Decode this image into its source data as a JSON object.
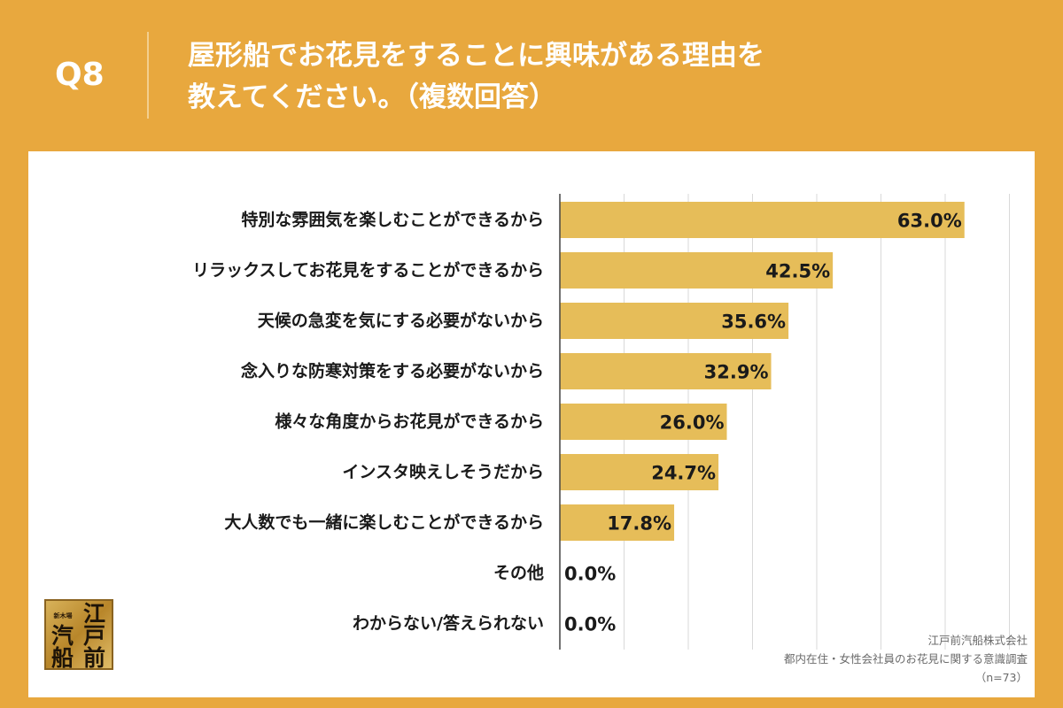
{
  "header": {
    "q_label": "Q8",
    "title_line1": "屋形船でお花見をすることに興味がある理由を",
    "title_line2": "教えてください。（複数回答）"
  },
  "colors": {
    "background": "#e8a83e",
    "panel": "#ffffff",
    "bar": "#e6bd59",
    "grid": "#d9d9d9",
    "axis": "#444444"
  },
  "chart_data": {
    "type": "bar",
    "orientation": "horizontal",
    "categories": [
      "特別な雰囲気を楽しむことができるから",
      "リラックスしてお花見をすることができるから",
      "天候の急変を気にする必要がないから",
      "念入りな防寒対策をする必要がないから",
      "様々な角度からお花見ができるから",
      "インスタ映えしそうだから",
      "大人数でも一緒に楽しむことができるから",
      "その他",
      "わからない/答えられない"
    ],
    "values": [
      63.0,
      42.5,
      35.6,
      32.9,
      26.0,
      24.7,
      17.8,
      0.0,
      0.0
    ],
    "value_labels": [
      "63.0%",
      "42.5%",
      "35.6%",
      "32.9%",
      "26.0%",
      "24.7%",
      "17.8%",
      "0.0%",
      "0.0%"
    ],
    "xlim": [
      0,
      70
    ],
    "grid": true
  },
  "credits": {
    "company": "江戸前汽船株式会社",
    "survey": "都内在住・女性会社員のお花見に関する意識調査",
    "sample": "（n=73）"
  },
  "logo": {
    "small_text": "新木場",
    "glyphs": [
      "江",
      "戸",
      "汽",
      "前",
      "船"
    ]
  }
}
